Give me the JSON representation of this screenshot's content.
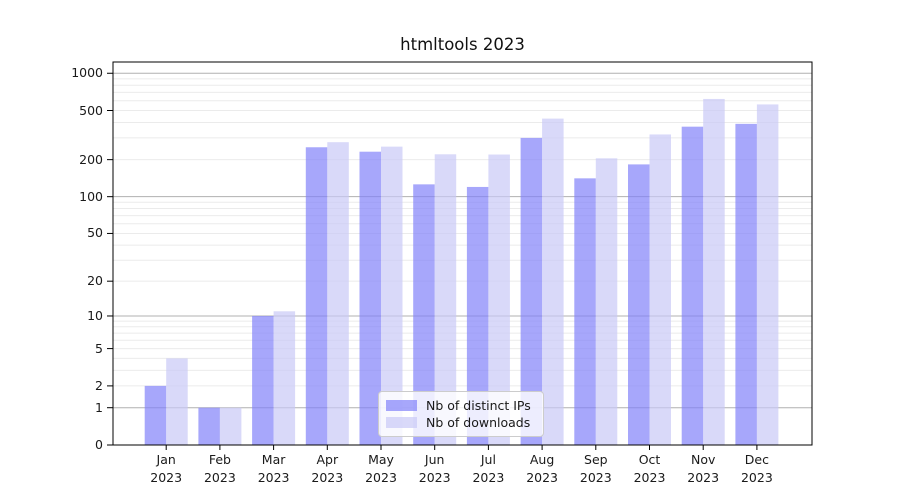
{
  "title": "htmltools 2023",
  "chart_data": {
    "type": "bar",
    "scale": "log1p",
    "title": "htmltools 2023",
    "x_months": [
      "Jan",
      "Feb",
      "Mar",
      "Apr",
      "May",
      "Jun",
      "Jul",
      "Aug",
      "Sep",
      "Oct",
      "Nov",
      "Dec"
    ],
    "x_year": "2023",
    "series": [
      {
        "name": "Nb of distinct IPs",
        "color": "#8282fa",
        "values": [
          2,
          1,
          10,
          252,
          232,
          126,
          120,
          300,
          141,
          183,
          370,
          390
        ]
      },
      {
        "name": "Nb of downloads",
        "color": "#c9c9f6",
        "values": [
          4,
          1,
          11,
          277,
          255,
          221,
          220,
          430,
          205,
          320,
          620,
          560
        ]
      }
    ],
    "bar_opacity": 0.7,
    "y_ticks": [
      0,
      1,
      2,
      5,
      10,
      20,
      50,
      100,
      200,
      500,
      1000
    ],
    "y_major_gridlines": [
      1,
      10,
      100,
      1000
    ],
    "ylim": [
      0,
      1233
    ],
    "grid": "on",
    "legend_position": "lower center",
    "colors": {
      "major_grid": "#b0b0b0",
      "minor_grid": "#ebebeb",
      "axis": "#000000",
      "text": "#1a1a1a"
    }
  }
}
